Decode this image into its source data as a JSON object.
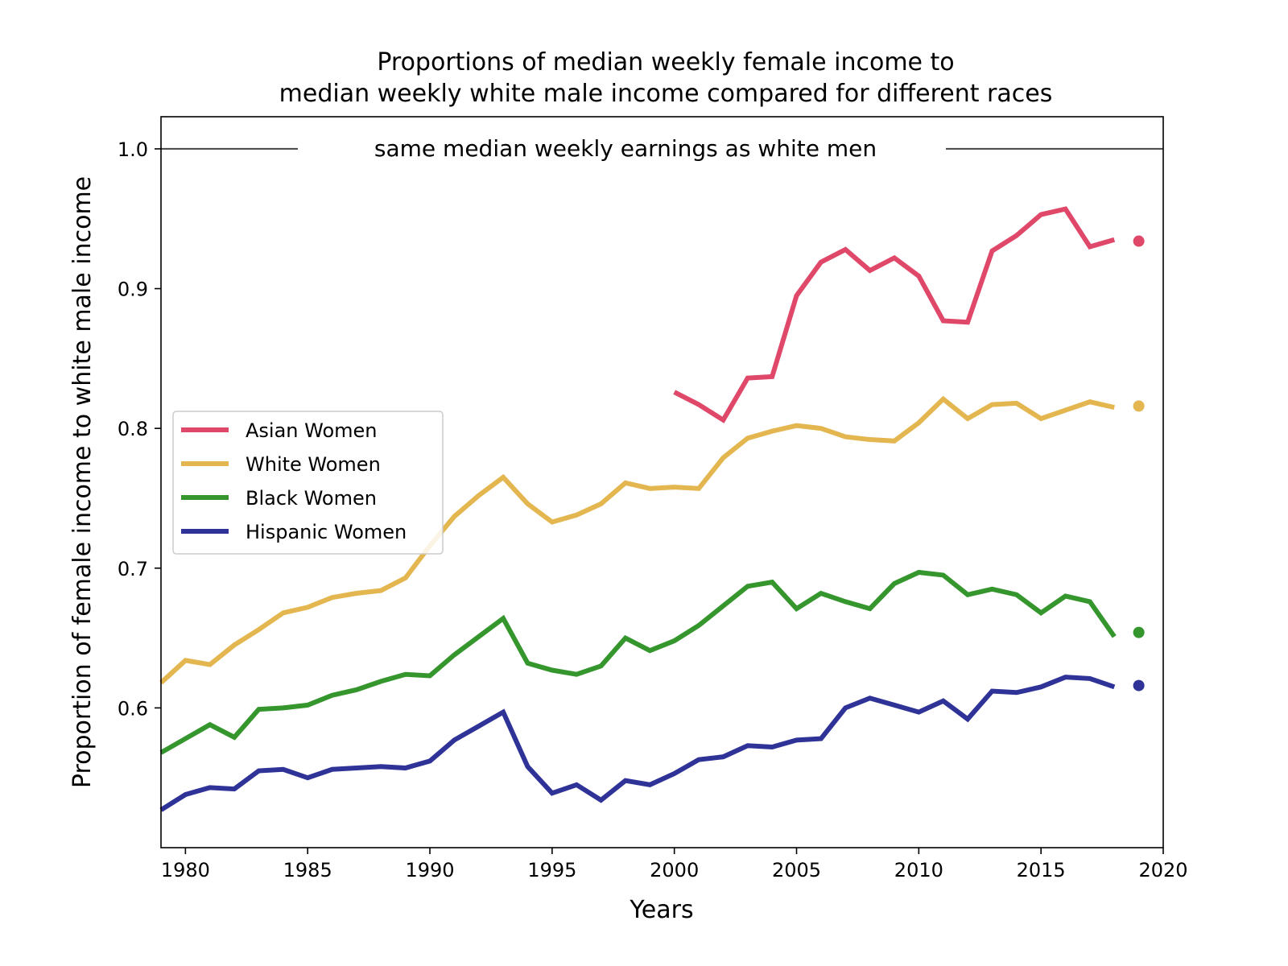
{
  "chart_data": {
    "type": "line",
    "title_line1": "Proportions of median weekly female income to",
    "title_line2": "median weekly white male income compared for different races",
    "xlabel": "Years",
    "ylabel": "Proportion of female income to white male income",
    "xlim": [
      1979,
      2020
    ],
    "ylim": [
      0.5,
      1.023
    ],
    "xticks": [
      1980,
      1985,
      1990,
      1995,
      2000,
      2005,
      2010,
      2015,
      2020
    ],
    "yticks": [
      0.6,
      0.7,
      0.8,
      0.9,
      1.0
    ],
    "ytick_labels": [
      "0.6",
      "0.7",
      "0.8",
      "0.9",
      "1.0"
    ],
    "reference_line": {
      "y": 1.0,
      "label": "same median weekly earnings as white men",
      "color": "#444444"
    },
    "grid": false,
    "legend_position": "center-left",
    "series": [
      {
        "name": "Asian Women",
        "color": "#e0486a",
        "x": [
          2000,
          2001,
          2002,
          2003,
          2004,
          2005,
          2006,
          2007,
          2008,
          2009,
          2010,
          2011,
          2012,
          2013,
          2014,
          2015,
          2016,
          2017,
          2018
        ],
        "values": [
          0.826,
          0.817,
          0.806,
          0.836,
          0.837,
          0.895,
          0.919,
          0.928,
          0.913,
          0.922,
          0.909,
          0.877,
          0.876,
          0.927,
          0.938,
          0.953,
          0.957,
          0.93,
          0.935
        ],
        "dot": {
          "x": 2019,
          "y": 0.934
        }
      },
      {
        "name": "White Women",
        "color": "#e3b650",
        "x": [
          1979,
          1980,
          1981,
          1982,
          1983,
          1984,
          1985,
          1986,
          1987,
          1988,
          1989,
          1990,
          1991,
          1992,
          1993,
          1994,
          1995,
          1996,
          1997,
          1998,
          1999,
          2000,
          2001,
          2002,
          2003,
          2004,
          2005,
          2006,
          2007,
          2008,
          2009,
          2010,
          2011,
          2012,
          2013,
          2014,
          2015,
          2016,
          2017,
          2018
        ],
        "values": [
          0.618,
          0.634,
          0.631,
          0.645,
          0.656,
          0.668,
          0.672,
          0.679,
          0.682,
          0.684,
          0.693,
          0.716,
          0.737,
          0.752,
          0.765,
          0.746,
          0.733,
          0.738,
          0.746,
          0.761,
          0.757,
          0.758,
          0.757,
          0.779,
          0.793,
          0.798,
          0.802,
          0.8,
          0.794,
          0.792,
          0.791,
          0.804,
          0.821,
          0.807,
          0.817,
          0.818,
          0.807,
          0.813,
          0.819,
          0.815
        ],
        "dot": {
          "x": 2019,
          "y": 0.816
        }
      },
      {
        "name": "Black Women",
        "color": "#35962e",
        "x": [
          1979,
          1980,
          1981,
          1982,
          1983,
          1984,
          1985,
          1986,
          1987,
          1988,
          1989,
          1990,
          1991,
          1992,
          1993,
          1994,
          1995,
          1996,
          1997,
          1998,
          1999,
          2000,
          2001,
          2002,
          2003,
          2004,
          2005,
          2006,
          2007,
          2008,
          2009,
          2010,
          2011,
          2012,
          2013,
          2014,
          2015,
          2016,
          2017,
          2018
        ],
        "values": [
          0.568,
          0.578,
          0.588,
          0.579,
          0.599,
          0.6,
          0.602,
          0.609,
          0.613,
          0.619,
          0.624,
          0.623,
          0.638,
          0.651,
          0.664,
          0.632,
          0.627,
          0.624,
          0.63,
          0.65,
          0.641,
          0.648,
          0.659,
          0.673,
          0.687,
          0.69,
          0.671,
          0.682,
          0.676,
          0.671,
          0.689,
          0.697,
          0.695,
          0.681,
          0.685,
          0.681,
          0.668,
          0.68,
          0.676,
          0.651
        ],
        "dot": {
          "x": 2019,
          "y": 0.654
        }
      },
      {
        "name": "Hispanic Women",
        "color": "#2f3397",
        "x": [
          1979,
          1980,
          1981,
          1982,
          1983,
          1984,
          1985,
          1986,
          1987,
          1988,
          1989,
          1990,
          1991,
          1992,
          1993,
          1994,
          1995,
          1996,
          1997,
          1998,
          1999,
          2000,
          2001,
          2002,
          2003,
          2004,
          2005,
          2006,
          2007,
          2008,
          2009,
          2010,
          2011,
          2012,
          2013,
          2014,
          2015,
          2016,
          2017,
          2018
        ],
        "values": [
          0.527,
          0.538,
          0.543,
          0.542,
          0.555,
          0.556,
          0.55,
          0.556,
          0.557,
          0.558,
          0.557,
          0.562,
          0.577,
          0.587,
          0.597,
          0.558,
          0.539,
          0.545,
          0.534,
          0.548,
          0.545,
          0.553,
          0.563,
          0.565,
          0.573,
          0.572,
          0.577,
          0.578,
          0.6,
          0.607,
          0.602,
          0.597,
          0.605,
          0.592,
          0.612,
          0.611,
          0.615,
          0.622,
          0.621,
          0.615
        ],
        "dot": {
          "x": 2019,
          "y": 0.616
        }
      }
    ]
  }
}
